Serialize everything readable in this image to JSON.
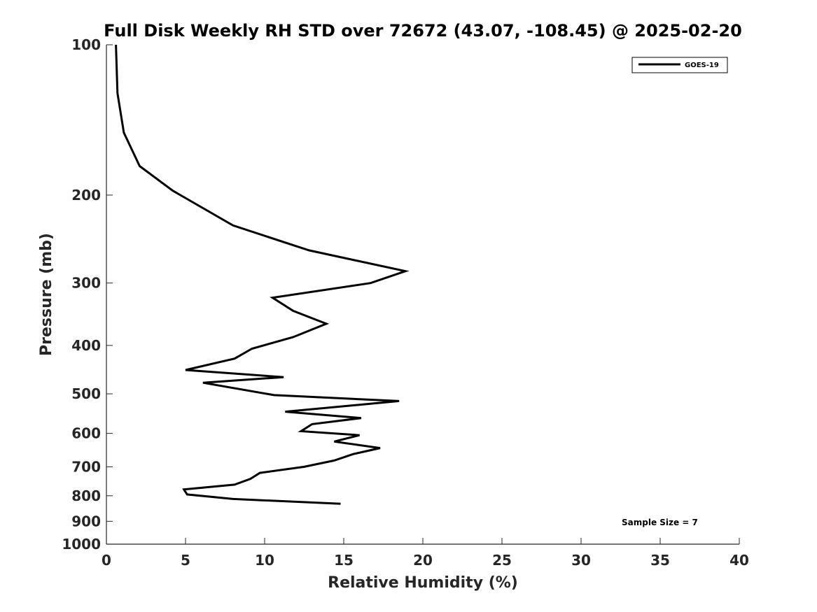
{
  "chart_data": {
    "type": "line",
    "title": "Full Disk Weekly RH STD over 72672 (43.07, -108.45) @ 2025-02-20",
    "xlabel": "Relative Humidity (%)",
    "ylabel": "Pressure (mb)",
    "xlim": [
      0,
      40
    ],
    "ylim": [
      100,
      1000
    ],
    "yscale": "log",
    "y_reversed": true,
    "xticks": [
      0,
      5,
      10,
      15,
      20,
      25,
      30,
      35,
      40
    ],
    "yticks": [
      100,
      200,
      300,
      400,
      500,
      600,
      700,
      800,
      900,
      1000
    ],
    "grid": false,
    "legend_position": "top-right",
    "annotation": "Sample Size = 7",
    "series": [
      {
        "name": "GOES-19",
        "color": "#000000",
        "points": [
          [
            0.6,
            100
          ],
          [
            0.7,
            125
          ],
          [
            1.1,
            150
          ],
          [
            2.1,
            175
          ],
          [
            4.2,
            196
          ],
          [
            8.0,
            230
          ],
          [
            12.8,
            258
          ],
          [
            18.9,
            284
          ],
          [
            16.7,
            300
          ],
          [
            10.5,
            321
          ],
          [
            11.8,
            341
          ],
          [
            13.9,
            362
          ],
          [
            11.8,
            385
          ],
          [
            9.2,
            406
          ],
          [
            8.1,
            425
          ],
          [
            5.0,
            448
          ],
          [
            11.2,
            463
          ],
          [
            6.1,
            475
          ],
          [
            10.6,
            503
          ],
          [
            18.5,
            517
          ],
          [
            11.3,
            543
          ],
          [
            16.1,
            559
          ],
          [
            13.0,
            575
          ],
          [
            12.3,
            594
          ],
          [
            16.0,
            605
          ],
          [
            14.4,
            623
          ],
          [
            17.3,
            642
          ],
          [
            15.6,
            660
          ],
          [
            14.4,
            680
          ],
          [
            12.5,
            700
          ],
          [
            9.7,
            720
          ],
          [
            9.1,
            740
          ],
          [
            8.1,
            760
          ],
          [
            4.9,
            777
          ],
          [
            5.1,
            795
          ],
          [
            8.0,
            812
          ],
          [
            14.8,
            830
          ]
        ]
      }
    ]
  }
}
